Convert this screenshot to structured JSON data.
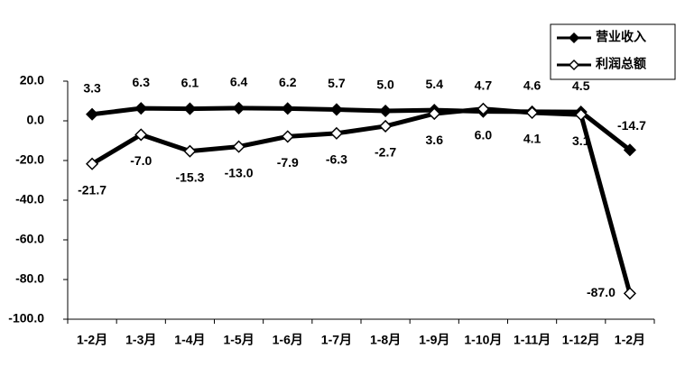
{
  "chart_data": {
    "type": "line",
    "categories": [
      "1-2月",
      "1-3月",
      "1-4月",
      "1-5月",
      "1-6月",
      "1-7月",
      "1-8月",
      "1-9月",
      "1-10月",
      "1-11月",
      "1-12月",
      "1-2月"
    ],
    "series": [
      {
        "name": "营业收入",
        "color": "#000000",
        "marker": "filled-diamond",
        "values": [
          3.3,
          6.3,
          6.1,
          6.4,
          6.2,
          5.7,
          5.0,
          5.4,
          4.7,
          4.6,
          4.5,
          -14.7
        ],
        "value_labels": [
          "3.3",
          "6.3",
          "6.1",
          "6.4",
          "6.2",
          "5.7",
          "5.0",
          "5.4",
          "4.7",
          "4.6",
          "4.5",
          "-14.7"
        ]
      },
      {
        "name": "利润总额",
        "color": "#000000",
        "marker": "open-diamond",
        "values": [
          -21.7,
          -7.0,
          -15.3,
          -13.0,
          -7.9,
          -6.3,
          -2.7,
          3.6,
          6.0,
          4.1,
          3.1,
          -87.0
        ],
        "value_labels": [
          "-21.7",
          "-7.0",
          "-15.3",
          "-13.0",
          "-7.9",
          "-6.3",
          "-2.7",
          "3.6",
          "6.0",
          "4.1",
          "3.1",
          "-87.0"
        ]
      }
    ],
    "ylim": [
      -100,
      20
    ],
    "yticks": [
      {
        "value": 20,
        "label": "20.0"
      },
      {
        "value": 0,
        "label": "0.0"
      },
      {
        "value": -20,
        "label": "-20.0"
      },
      {
        "value": -40,
        "label": "-40.0"
      },
      {
        "value": -60,
        "label": "-60.0"
      },
      {
        "value": -80,
        "label": "-80.0"
      },
      {
        "value": -100,
        "label": "-100.0"
      }
    ],
    "grid": false,
    "legend": "top-right"
  }
}
